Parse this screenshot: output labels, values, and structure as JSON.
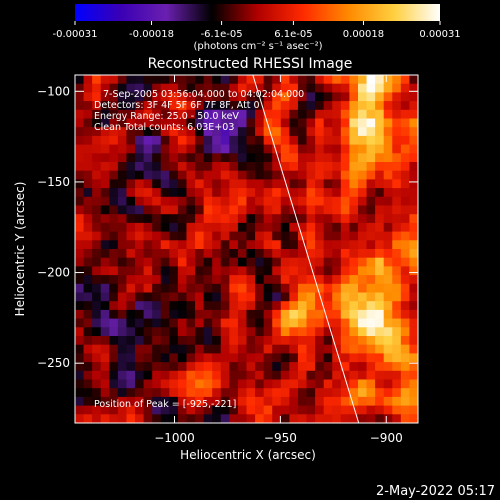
{
  "colorbar": {
    "ticks": [
      "-0.00031",
      "-0.00018",
      "-6.1e-05",
      "6.1e-05",
      "0.00018",
      "0.00031"
    ],
    "tick_values": [
      -0.00031,
      -0.00018,
      -6.1e-05,
      6.1e-05,
      0.00018,
      0.00031
    ],
    "range": [
      -0.00031,
      0.00031
    ],
    "units": "(photons cm⁻² s⁻¹ asec⁻²)"
  },
  "chart_data": {
    "type": "heatmap",
    "title": "Reconstructed RHESSI Image",
    "xlabel": "Heliocentric X (arcsec)",
    "ylabel": "Heliocentric Y (arcsec)",
    "xlim": [
      -1047,
      -885
    ],
    "ylim": [
      -283,
      -91
    ],
    "xticks": [
      -1000,
      -950,
      -900
    ],
    "xtick_labels": [
      "−1000",
      "−950",
      "−900"
    ],
    "yticks": [
      -100,
      -150,
      -200,
      -250
    ],
    "ytick_labels": [
      "−100",
      "−150",
      "−200",
      "−250"
    ],
    "limb_line": [
      [
        -963,
        -91
      ],
      [
        -913,
        -283
      ]
    ],
    "peak_xy": [
      -925,
      -221
    ],
    "annotations": [
      "7-Sep-2005 03:56:04.000 to 04:02:04.000",
      "Detectors: 3F 4F 5F 6F 7F 8F, Att 0",
      "Energy Range: 25.0 - 50.0 keV",
      "Clean     Total counts: 6.03E+03",
      "Position of Peak = [-925,-221]"
    ],
    "colormap_stops": [
      "#0000ff",
      "#3a00b4",
      "#6a1fb0",
      "#000000",
      "#b00000",
      "#ff2a00",
      "#ff8a00",
      "#ffd040",
      "#ffffff"
    ]
  },
  "timestamp": "2-May-2022 05:17"
}
